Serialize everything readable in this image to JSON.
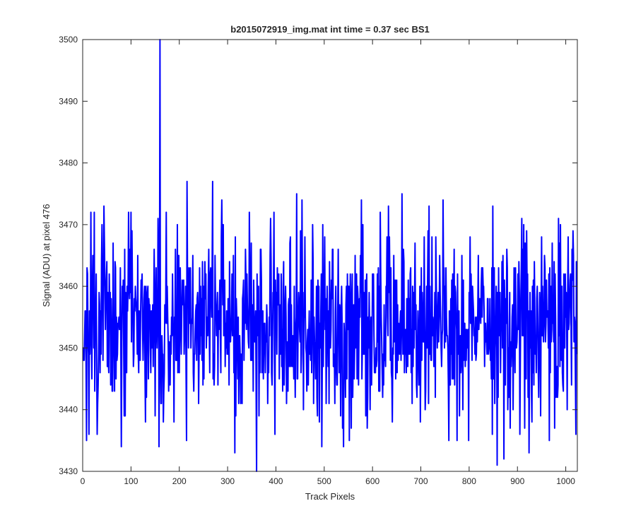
{
  "chart_data": {
    "type": "line",
    "title": "b2015072919_img.mat int time = 0.37 sec   BS1",
    "xlabel": "Track Pixels",
    "ylabel": "Signal (ADU) at pixel 476",
    "xlim": [
      0,
      1024
    ],
    "ylim": [
      3430,
      3500
    ],
    "xticks": [
      0,
      100,
      200,
      300,
      400,
      500,
      600,
      700,
      800,
      900,
      1000
    ],
    "yticks": [
      3430,
      3440,
      3450,
      3460,
      3470,
      3480,
      3490,
      3500
    ],
    "grid": false,
    "line_color": "#0000ff",
    "noise": {
      "seed": 2015072919,
      "n_points": 1024,
      "mean": 3454,
      "min": 3431,
      "max": 3475
    },
    "spikes": [
      {
        "x": 13,
        "y": 3436
      },
      {
        "x": 17,
        "y": 3472
      },
      {
        "x": 40,
        "y": 3470
      },
      {
        "x": 80,
        "y": 3434
      },
      {
        "x": 95,
        "y": 3472
      },
      {
        "x": 160,
        "y": 3500
      },
      {
        "x": 162,
        "y": 3441
      },
      {
        "x": 215,
        "y": 3435
      },
      {
        "x": 216,
        "y": 3477
      },
      {
        "x": 269,
        "y": 3477
      },
      {
        "x": 315,
        "y": 3433
      },
      {
        "x": 360,
        "y": 3430
      },
      {
        "x": 396,
        "y": 3472
      },
      {
        "x": 454,
        "y": 3474
      },
      {
        "x": 495,
        "y": 3434
      },
      {
        "x": 661,
        "y": 3475
      },
      {
        "x": 775,
        "y": 3435
      },
      {
        "x": 848,
        "y": 3436
      },
      {
        "x": 858,
        "y": 3431
      },
      {
        "x": 1021,
        "y": 3436
      }
    ]
  }
}
